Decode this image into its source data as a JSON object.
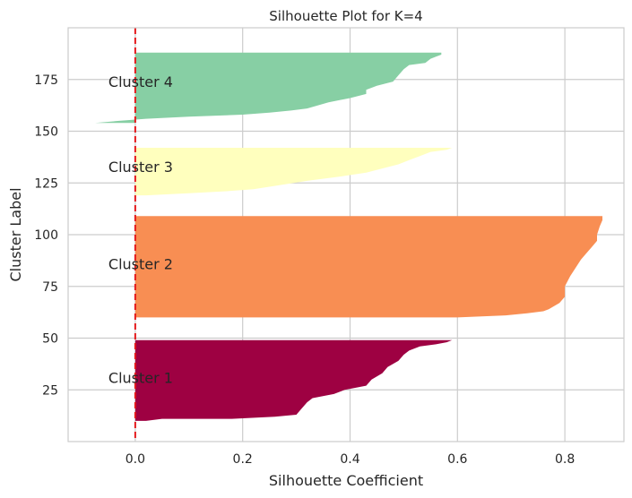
{
  "chart_data": {
    "type": "area",
    "title": "Silhouette Plot for K=4",
    "xlabel": "Silhouette Coefficient",
    "ylabel": "Cluster Label",
    "xlim": [
      -0.125,
      0.91
    ],
    "ylim": [
      0,
      200
    ],
    "xticks": [
      "0.0",
      "0.2",
      "0.4",
      "0.6",
      "0.8"
    ],
    "xtick_values": [
      0.0,
      0.2,
      0.4,
      0.6,
      0.8
    ],
    "yticks": [
      "25",
      "50",
      "75",
      "100",
      "125",
      "150",
      "175"
    ],
    "ytick_values": [
      25,
      50,
      75,
      100,
      125,
      150,
      175
    ],
    "grid": true,
    "reference_line": {
      "x": 0.0,
      "color": "#e41a1c",
      "style": "dashed"
    },
    "series": [
      {
        "name": "Cluster 1",
        "color": "#9e0142",
        "label_at": [
          -0.05,
          31
        ],
        "profile": [
          [
            10,
            0.0
          ],
          [
            10,
            0.02
          ],
          [
            11,
            0.05
          ],
          [
            11,
            0.18
          ],
          [
            12,
            0.26
          ],
          [
            13,
            0.3
          ],
          [
            16,
            0.31
          ],
          [
            19,
            0.32
          ],
          [
            21,
            0.33
          ],
          [
            23,
            0.37
          ],
          [
            25,
            0.39
          ],
          [
            27,
            0.43
          ],
          [
            30,
            0.44
          ],
          [
            33,
            0.46
          ],
          [
            36,
            0.47
          ],
          [
            39,
            0.49
          ],
          [
            42,
            0.5
          ],
          [
            44,
            0.51
          ],
          [
            46,
            0.53
          ],
          [
            47,
            0.56
          ],
          [
            48,
            0.58
          ],
          [
            49,
            0.59
          ],
          [
            49,
            0.0
          ]
        ]
      },
      {
        "name": "Cluster 2",
        "color": "#f88e53",
        "label_at": [
          -0.05,
          86
        ],
        "profile": [
          [
            60,
            0.0
          ],
          [
            60,
            0.6
          ],
          [
            61,
            0.69
          ],
          [
            62,
            0.73
          ],
          [
            63,
            0.76
          ],
          [
            64,
            0.77
          ],
          [
            67,
            0.79
          ],
          [
            70,
            0.8
          ],
          [
            75,
            0.8
          ],
          [
            80,
            0.81
          ],
          [
            84,
            0.82
          ],
          [
            88,
            0.83
          ],
          [
            91,
            0.84
          ],
          [
            94,
            0.85
          ],
          [
            97,
            0.86
          ],
          [
            100,
            0.86
          ],
          [
            104,
            0.865
          ],
          [
            107,
            0.87
          ],
          [
            109,
            0.87
          ],
          [
            109,
            0.0
          ]
        ]
      },
      {
        "name": "Cluster 3",
        "color": "#ffffbe",
        "label_at": [
          -0.05,
          133
        ],
        "profile": [
          [
            119,
            0.0
          ],
          [
            119,
            0.02
          ],
          [
            120,
            0.1
          ],
          [
            121,
            0.17
          ],
          [
            122,
            0.22
          ],
          [
            124,
            0.27
          ],
          [
            126,
            0.32
          ],
          [
            128,
            0.38
          ],
          [
            130,
            0.43
          ],
          [
            132,
            0.46
          ],
          [
            134,
            0.49
          ],
          [
            136,
            0.51
          ],
          [
            138,
            0.53
          ],
          [
            140,
            0.55
          ],
          [
            141,
            0.58
          ],
          [
            142,
            0.59
          ],
          [
            142,
            0.0
          ]
        ]
      },
      {
        "name": "Cluster 4",
        "color": "#87cfa4",
        "label_at": [
          -0.05,
          174
        ],
        "profile": [
          [
            154,
            0.0
          ],
          [
            154,
            -0.075
          ],
          [
            155,
            -0.03
          ],
          [
            156,
            0.02
          ],
          [
            157,
            0.1
          ],
          [
            158,
            0.2
          ],
          [
            159,
            0.25
          ],
          [
            160,
            0.29
          ],
          [
            161,
            0.32
          ],
          [
            164,
            0.36
          ],
          [
            166,
            0.4
          ],
          [
            168,
            0.43
          ],
          [
            170,
            0.43
          ],
          [
            172,
            0.45
          ],
          [
            174,
            0.48
          ],
          [
            177,
            0.49
          ],
          [
            180,
            0.5
          ],
          [
            182,
            0.51
          ],
          [
            183,
            0.54
          ],
          [
            185,
            0.55
          ],
          [
            186,
            0.56
          ],
          [
            187,
            0.57
          ],
          [
            188,
            0.57
          ],
          [
            188,
            0.0
          ]
        ]
      }
    ]
  }
}
